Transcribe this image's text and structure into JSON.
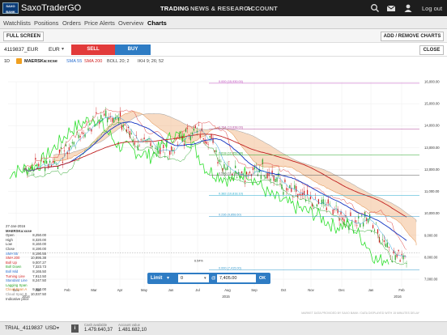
{
  "topbar": {
    "logo_line1": "SAXO",
    "logo_line2": "BANK",
    "app_title": "SaxoTraderGO",
    "nav": [
      "TRADING",
      "NEWS & RESEARCH",
      "ACCOUNT"
    ],
    "logout": "Log out",
    "icons": [
      "search-icon",
      "mail-icon",
      "user-icon"
    ]
  },
  "subnav": {
    "tabs": [
      "Watchlists",
      "Positions",
      "Orders",
      "Price Alerts",
      "Overview",
      "Charts"
    ],
    "active": "Charts"
  },
  "toolbar": {
    "full_screen": "FULL SCREEN",
    "add_remove": "ADD / REMOVE CHARTS"
  },
  "instrument": {
    "account": "4119837_EUR",
    "currency": "EUR",
    "sell": "SELL",
    "buy": "BUY",
    "close": "CLOSE"
  },
  "legend": {
    "timeframe": "1D",
    "symbol": "MAERSKa:xcse",
    "sma55": "SMA 55",
    "sma200": "SMA 200",
    "boll": "BOLL 20; 2",
    "ikh": "IKH 9; 26; 52"
  },
  "chart_data": {
    "type": "line",
    "y_ticks": [
      "16,000.00",
      "15,000.00",
      "14,000.00",
      "13,000.00",
      "12,000.00",
      "11,000.00",
      "10,000.00",
      "9,000.00",
      "8,000.00",
      "7,000.00"
    ],
    "x_ticks": [
      "Dec",
      "2014",
      "Jan",
      "Feb",
      "Mar",
      "Apr",
      "May",
      "Jun",
      "Jul",
      "2015",
      "Aug",
      "Sep",
      "Oct",
      "Nov",
      "Dec",
      "Jan",
      "2016",
      "Feb"
    ],
    "fib_labels": [
      {
        "label": "0.000 (15,930.00)",
        "value": 15930,
        "color": "#c04cc0"
      },
      {
        "label": "0.764 (13,838.00)",
        "value": 13838,
        "color": "#b0459a"
      },
      {
        "label": "0.618 (12,652.88)",
        "value": 12653,
        "color": "#2aa52a"
      },
      {
        "label": "0.500 (11,738.50)",
        "value": 11739,
        "color": "#555555"
      },
      {
        "label": "0.382 (10,818.10)",
        "value": 10818,
        "color": "#22aacc"
      },
      {
        "label": "0.236 (9,858.60)",
        "value": 9859,
        "color": "#3399cc"
      },
      {
        "label": "0.000 (7,415.00)",
        "value": 7415,
        "color": "#3399cc"
      }
    ],
    "left_labels": [
      {
        "label": "6.54%",
        "value": 7800
      }
    ],
    "watermark": "MARKET DATA PROVIDED BY SAXO BANK / DATA DISPLAYED WITH 15 MINUTES DELAY"
  },
  "info": {
    "date": "27-Jan-2016",
    "symbol": "MAERSKa:xcse",
    "rows": [
      {
        "k": "Open",
        "v": "8,250.00",
        "c": "#333"
      },
      {
        "k": "High",
        "v": "8,320.00",
        "c": "#333"
      },
      {
        "k": "Low",
        "v": "8,160.00",
        "c": "#333"
      },
      {
        "k": "Close",
        "v": "8,190.00",
        "c": "#333"
      },
      {
        "k": "SMA 55",
        "v": "8,190.55",
        "c": "#2b6fd0"
      },
      {
        "k": "SMA 200",
        "v": "10,895.38",
        "c": "#d02020"
      },
      {
        "k": "Boll Up",
        "v": "9,007.27",
        "c": "#d02020"
      },
      {
        "k": "Boll Down",
        "v": "7,323.73",
        "c": "#2aa52a"
      },
      {
        "k": "Boll Mid",
        "v": "8,165.50",
        "c": "#2b6fd0"
      },
      {
        "k": "Turning Line",
        "v": "7,912.50",
        "c": "#d02020"
      },
      {
        "k": "Standard Line",
        "v": "8,247.50",
        "c": "#2b6fd0"
      },
      {
        "k": "Lagging Span",
        "v": "",
        "c": "#2aa52a"
      },
      {
        "k": "Cloud Span A",
        "v": "9,650.00",
        "c": "#e08030"
      },
      {
        "k": "Cloud Span B",
        "v": "10,037.50",
        "c": "#8a8a8a"
      },
      {
        "k": "Indicative price",
        "v": "",
        "c": "#333"
      }
    ]
  },
  "order": {
    "type": "Limit",
    "qty": "0",
    "at": "@",
    "price": "7,405.00",
    "ok": "OK"
  },
  "statusbar": {
    "account": "TRIAL_4119837",
    "currency": "USD",
    "cash_label": "Cash available",
    "cash": "1.479.640,37",
    "value_label": "Account value",
    "value": "1.481.682,10"
  }
}
